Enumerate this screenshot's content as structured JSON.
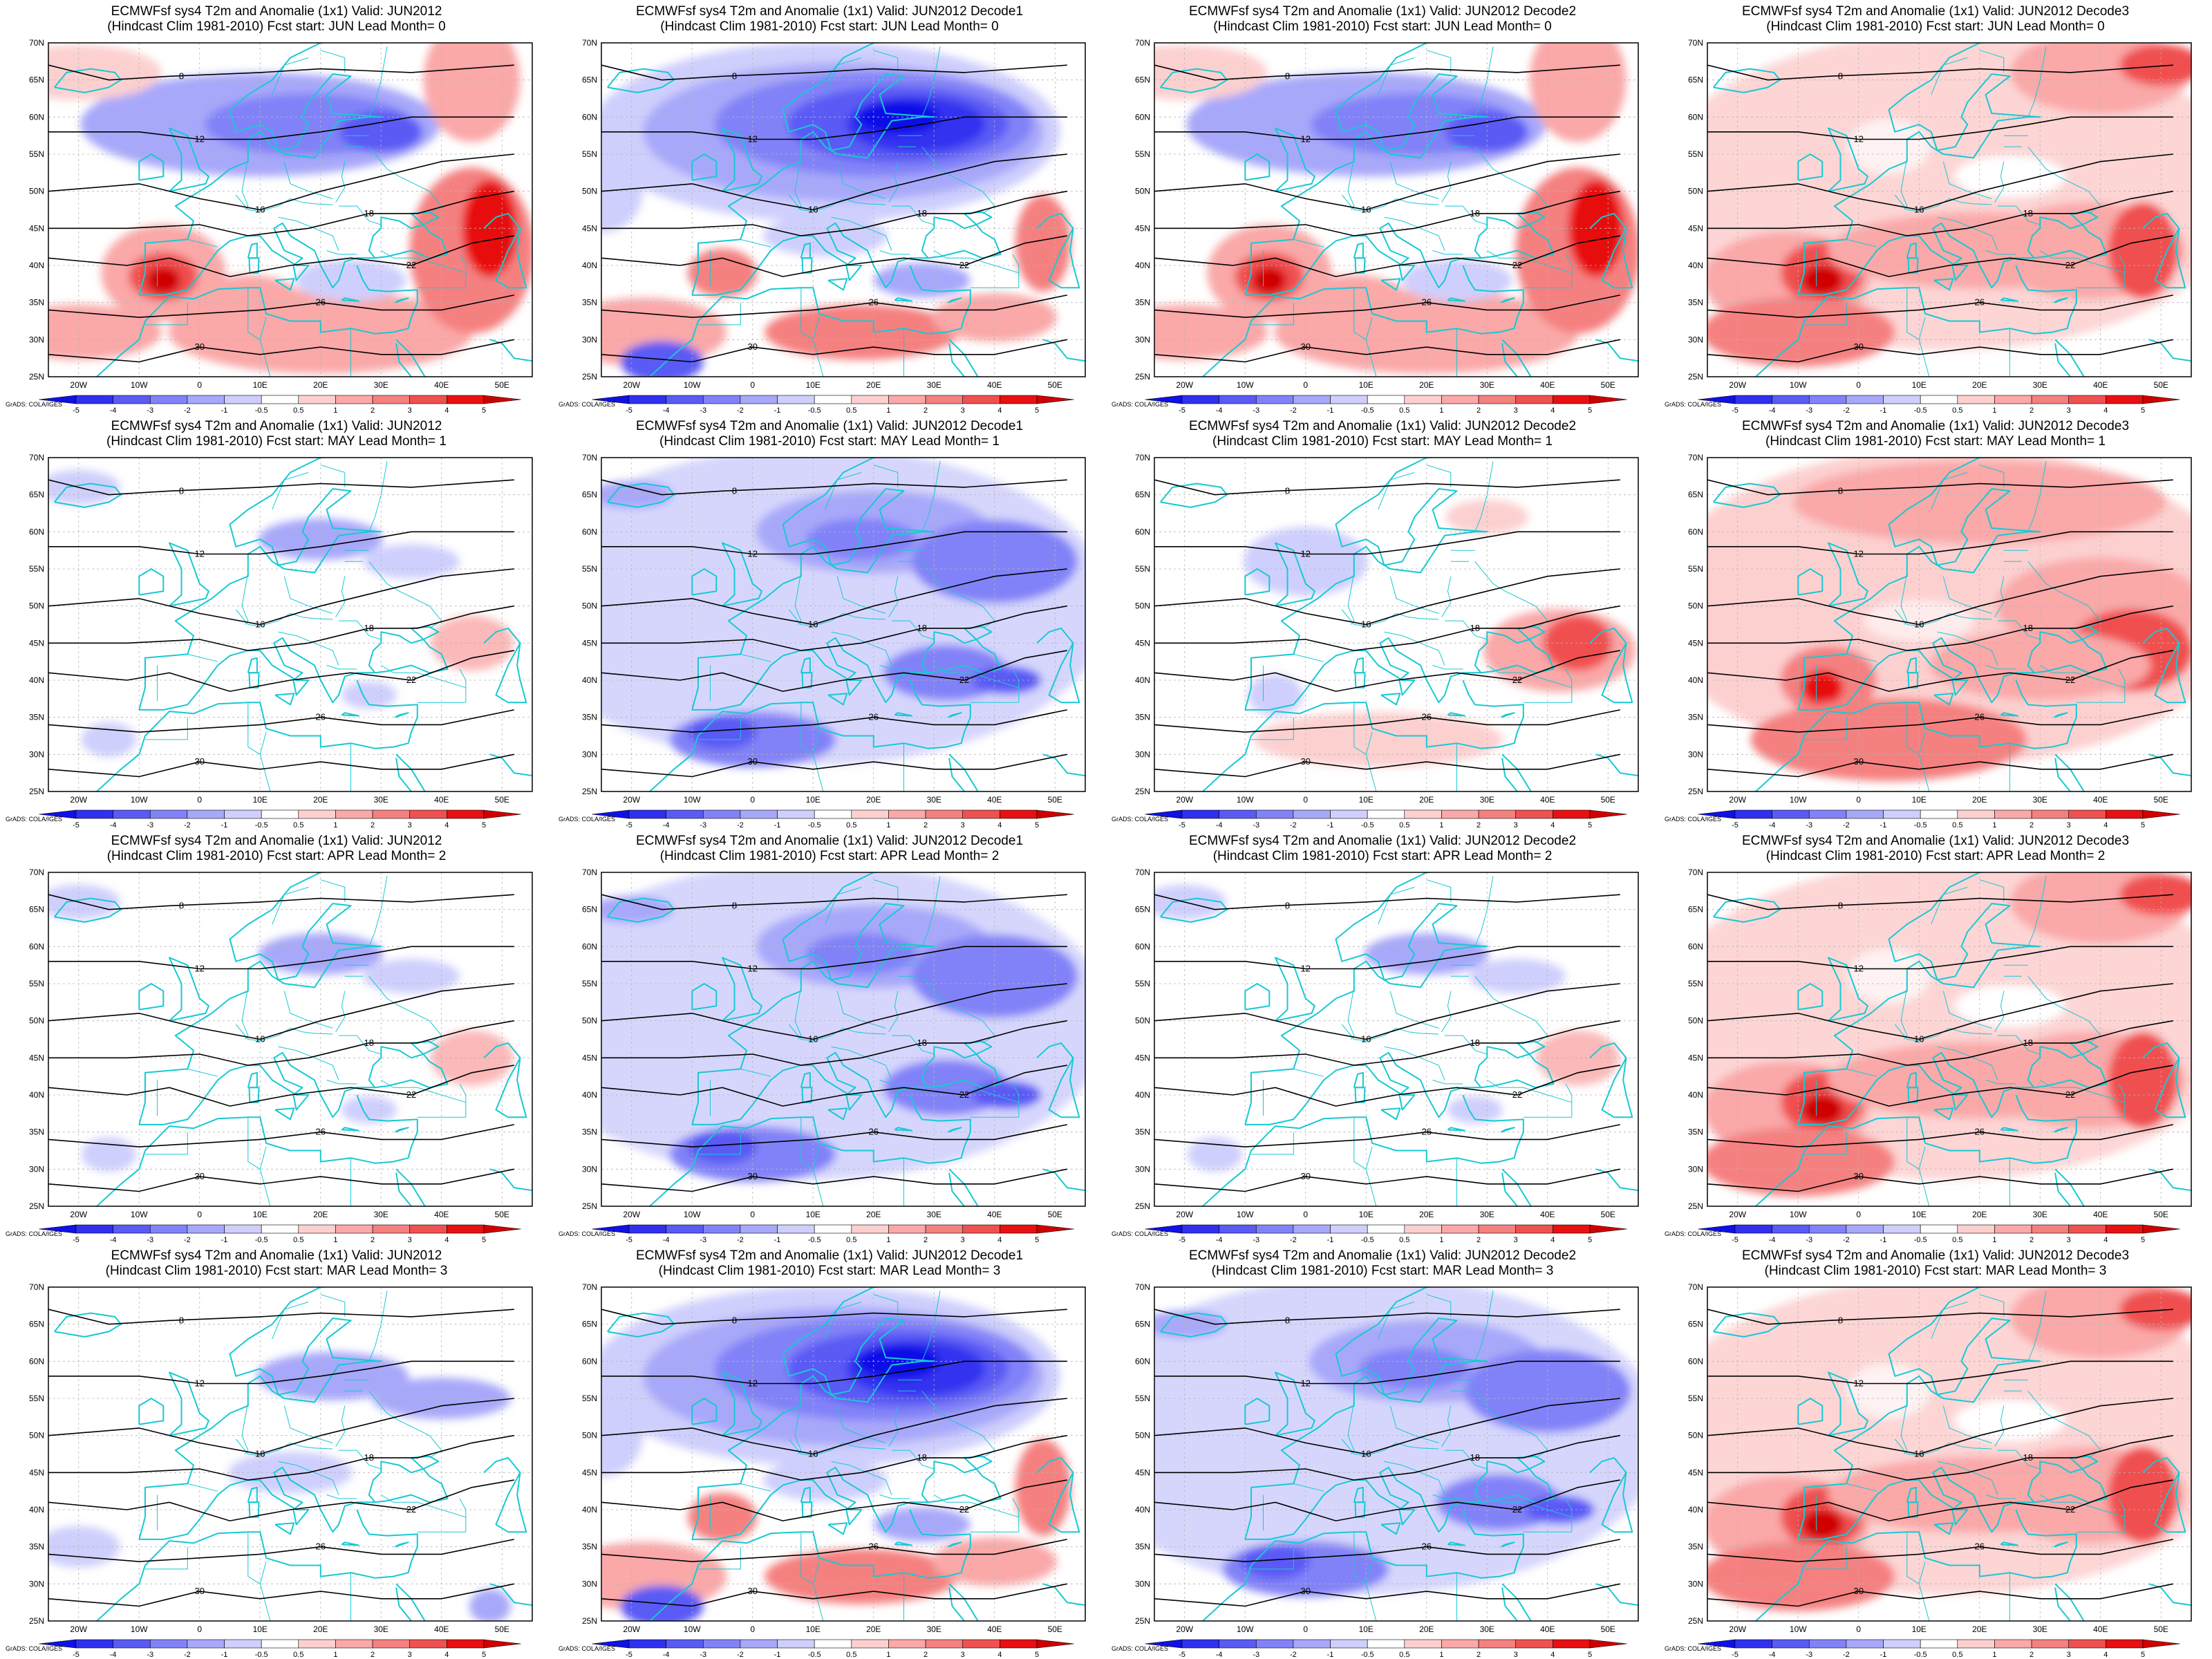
{
  "rows": [
    {
      "fcst_start": "JUN",
      "lead": "0"
    },
    {
      "fcst_start": "MAY",
      "lead": "1"
    },
    {
      "fcst_start": "APR",
      "lead": "2"
    },
    {
      "fcst_start": "MAR",
      "lead": "3"
    }
  ],
  "cols": [
    {
      "valid": "JUN2012"
    },
    {
      "valid": "JUN2012 Decode1"
    },
    {
      "valid": "JUN2012 Decode2"
    },
    {
      "valid": "JUN2012 Decode3"
    }
  ],
  "title_prefix": "ECMWFsf sys4  T2m and Anomalie (1x1) Valid: ",
  "subtitle_template": "(Hindcast Clim 1981-2010) Fcst start: {start}  Lead Month= {lead}",
  "lat_labels": [
    "70N",
    "65N",
    "60N",
    "55N",
    "50N",
    "45N",
    "40N",
    "35N",
    "30N",
    "25N"
  ],
  "lon_labels": [
    "20W",
    "10W",
    "0",
    "10E",
    "20E",
    "30E",
    "40E",
    "50E"
  ],
  "credit": "GrADS: COLA/IGES",
  "colorbar": {
    "labels": [
      "-5",
      "-4",
      "-3",
      "-2",
      "-1",
      "-0.5",
      "0.5",
      "1",
      "2",
      "3",
      "4",
      "5"
    ],
    "colors": [
      "#1010e8",
      "#3030f0",
      "#5a5af5",
      "#8282f8",
      "#a8a8fa",
      "#cfcffd",
      "#ffffff",
      "#fdd0d0",
      "#faa8a8",
      "#f58080",
      "#f05050",
      "#e81010",
      "#d00000"
    ]
  },
  "contour_labels": [
    "8",
    "12",
    "16",
    "18",
    "22",
    "26",
    "30"
  ],
  "panel_anomaly": [
    [
      "mixed",
      "cold-strong",
      "mixed",
      "warm"
    ],
    [
      "neutral",
      "cold",
      "neutral-warm",
      "warm-strong"
    ],
    [
      "neutral",
      "cold",
      "neutral",
      "warm"
    ],
    [
      "neutral-cold",
      "cold-strong",
      "cold",
      "warm"
    ]
  ]
}
